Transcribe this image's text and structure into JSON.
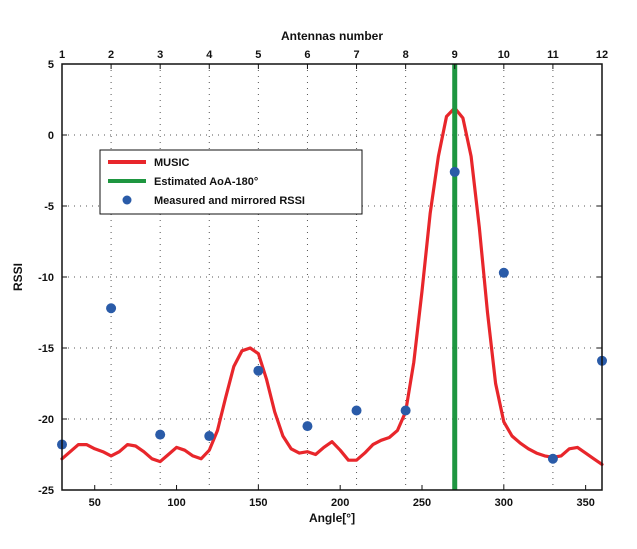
{
  "chart_data": {
    "type": "line",
    "xlabel": "Angle[°]",
    "ylabel": "RSSI",
    "x2label": "Antennas number",
    "xlim": [
      30,
      360
    ],
    "ylim": [
      -25,
      5
    ],
    "x_ticks": [
      50,
      100,
      150,
      200,
      250,
      300,
      350
    ],
    "y_ticks": [
      5,
      0,
      -5,
      -10,
      -15,
      -20,
      -25
    ],
    "x2_ticks": [
      1,
      2,
      3,
      4,
      5,
      6,
      7,
      8,
      9,
      10,
      11,
      12
    ],
    "x2_ticks_at_angle": [
      30,
      60,
      90,
      120,
      150,
      180,
      210,
      240,
      270,
      300,
      330,
      360
    ],
    "grid": true,
    "legend_position": "upper-left",
    "series": [
      {
        "name": "MUSIC",
        "kind": "line",
        "color": "#e8262b",
        "x": [
          30,
          35,
          40,
          45,
          50,
          55,
          60,
          65,
          70,
          75,
          80,
          85,
          90,
          95,
          100,
          105,
          110,
          115,
          120,
          125,
          130,
          135,
          140,
          145,
          150,
          155,
          160,
          165,
          170,
          175,
          180,
          185,
          190,
          195,
          200,
          205,
          210,
          215,
          220,
          225,
          230,
          235,
          240,
          245,
          250,
          255,
          260,
          265,
          270,
          275,
          280,
          285,
          290,
          295,
          300,
          305,
          310,
          315,
          320,
          325,
          330,
          335,
          340,
          345,
          350,
          355,
          360
        ],
        "y": [
          -22.8,
          -22.3,
          -21.8,
          -21.8,
          -22.1,
          -22.3,
          -22.6,
          -22.3,
          -21.8,
          -21.9,
          -22.3,
          -22.8,
          -23.0,
          -22.5,
          -22.0,
          -22.2,
          -22.6,
          -22.8,
          -22.2,
          -20.8,
          -18.5,
          -16.3,
          -15.2,
          -15.0,
          -15.4,
          -17.2,
          -19.5,
          -21.2,
          -22.1,
          -22.4,
          -22.3,
          -22.5,
          -22.0,
          -21.6,
          -22.2,
          -22.9,
          -22.9,
          -22.4,
          -21.8,
          -21.5,
          -21.3,
          -20.8,
          -19.5,
          -16.0,
          -11.0,
          -5.5,
          -1.5,
          1.3,
          1.9,
          1.2,
          -1.5,
          -6.5,
          -12.5,
          -17.5,
          -20.2,
          -21.2,
          -21.7,
          -22.1,
          -22.4,
          -22.6,
          -22.7,
          -22.6,
          -22.1,
          -22.0,
          -22.4,
          -22.8,
          -23.2
        ]
      },
      {
        "name": "Estimated AoA-180°",
        "kind": "vline",
        "color": "#1e9640",
        "x": 270
      },
      {
        "name": "Measured and mirrored RSSI",
        "kind": "scatter",
        "color": "#2a5ba8",
        "x": [
          30,
          60,
          90,
          120,
          150,
          180,
          210,
          240,
          270,
          300,
          330,
          360
        ],
        "y": [
          -21.8,
          -12.2,
          -21.1,
          -21.2,
          -16.6,
          -20.5,
          -19.4,
          -19.4,
          -2.6,
          -9.7,
          -22.8,
          -15.9
        ]
      }
    ]
  }
}
